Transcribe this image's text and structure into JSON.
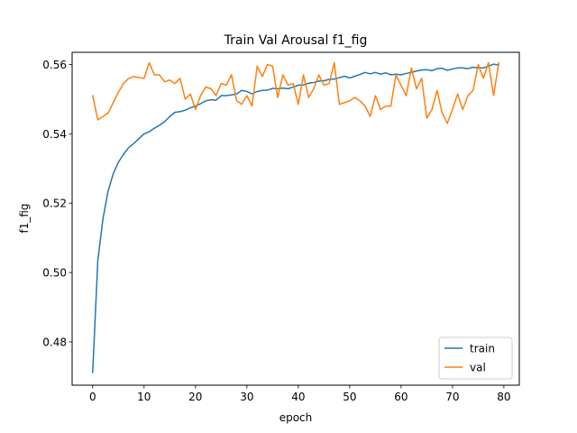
{
  "chart_data": {
    "type": "line",
    "title": "Train Val Arousal f1_fig",
    "xlabel": "epoch",
    "ylabel": "f1_fig",
    "xlim": [
      -4,
      83
    ],
    "ylim": [
      0.4675,
      0.5635
    ],
    "xticks": [
      0,
      10,
      20,
      30,
      40,
      50,
      60,
      70,
      80
    ],
    "yticks": [
      0.48,
      0.5,
      0.52,
      0.54,
      0.56
    ],
    "ytick_labels": [
      "0.48",
      "0.50",
      "0.52",
      "0.54",
      "0.56"
    ],
    "grid": false,
    "legend_position": "bottom-right",
    "series": [
      {
        "name": "train",
        "color": "#1f77b4",
        "x": [
          0,
          1,
          2,
          3,
          4,
          5,
          6,
          7,
          8,
          9,
          10,
          11,
          12,
          13,
          14,
          15,
          16,
          17,
          18,
          19,
          20,
          21,
          22,
          23,
          24,
          25,
          26,
          27,
          28,
          29,
          30,
          31,
          32,
          33,
          34,
          35,
          36,
          37,
          38,
          39,
          40,
          41,
          42,
          43,
          44,
          45,
          46,
          47,
          48,
          49,
          50,
          51,
          52,
          53,
          54,
          55,
          56,
          57,
          58,
          59,
          60,
          61,
          62,
          63,
          64,
          65,
          66,
          67,
          68,
          69,
          70,
          71,
          72,
          73,
          74,
          75,
          76,
          77,
          78,
          79
        ],
        "values": [
          0.4712,
          0.5035,
          0.5155,
          0.5235,
          0.5285,
          0.5318,
          0.5341,
          0.536,
          0.5372,
          0.5386,
          0.54,
          0.5406,
          0.5416,
          0.5425,
          0.5435,
          0.545,
          0.5462,
          0.5464,
          0.5468,
          0.5475,
          0.548,
          0.5487,
          0.5495,
          0.5498,
          0.5497,
          0.551,
          0.551,
          0.5512,
          0.5515,
          0.5525,
          0.5522,
          0.5515,
          0.5522,
          0.5525,
          0.5526,
          0.5531,
          0.553,
          0.5532,
          0.553,
          0.5535,
          0.554,
          0.5541,
          0.5546,
          0.5548,
          0.5552,
          0.5553,
          0.5557,
          0.5558,
          0.5562,
          0.5566,
          0.5561,
          0.5566,
          0.5571,
          0.5577,
          0.5573,
          0.5577,
          0.5572,
          0.5576,
          0.557,
          0.5572,
          0.557,
          0.5574,
          0.5577,
          0.5581,
          0.5584,
          0.5585,
          0.5582,
          0.5588,
          0.5589,
          0.5583,
          0.5587,
          0.559,
          0.559,
          0.5588,
          0.5592,
          0.559,
          0.559,
          0.5595,
          0.5601,
          0.5598
        ]
      },
      {
        "name": "val",
        "color": "#ff7f0e",
        "x": [
          0,
          1,
          2,
          3,
          4,
          5,
          6,
          7,
          8,
          9,
          10,
          11,
          12,
          13,
          14,
          15,
          16,
          17,
          18,
          19,
          20,
          21,
          22,
          23,
          24,
          25,
          26,
          27,
          28,
          29,
          30,
          31,
          32,
          33,
          34,
          35,
          36,
          37,
          38,
          39,
          40,
          41,
          42,
          43,
          44,
          45,
          46,
          47,
          48,
          49,
          50,
          51,
          52,
          53,
          54,
          55,
          56,
          57,
          58,
          59,
          60,
          61,
          62,
          63,
          64,
          65,
          66,
          67,
          68,
          69,
          70,
          71,
          72,
          73,
          74,
          75,
          76,
          77,
          78,
          79
        ],
        "values": [
          0.551,
          0.544,
          0.545,
          0.546,
          0.549,
          0.552,
          0.5545,
          0.556,
          0.5565,
          0.5562,
          0.556,
          0.5605,
          0.557,
          0.557,
          0.555,
          0.5555,
          0.5545,
          0.556,
          0.55,
          0.5515,
          0.547,
          0.551,
          0.5535,
          0.553,
          0.551,
          0.5545,
          0.554,
          0.557,
          0.5495,
          0.5485,
          0.551,
          0.548,
          0.5595,
          0.5565,
          0.56,
          0.5595,
          0.5505,
          0.557,
          0.554,
          0.5545,
          0.5485,
          0.557,
          0.5505,
          0.553,
          0.557,
          0.554,
          0.5545,
          0.5605,
          0.5485,
          0.549,
          0.5495,
          0.5505,
          0.5495,
          0.548,
          0.545,
          0.551,
          0.547,
          0.548,
          0.548,
          0.557,
          0.554,
          0.551,
          0.559,
          0.553,
          0.556,
          0.5445,
          0.547,
          0.5525,
          0.546,
          0.543,
          0.547,
          0.5515,
          0.547,
          0.551,
          0.5525,
          0.56,
          0.556,
          0.5605,
          0.551,
          0.5605
        ]
      }
    ]
  }
}
